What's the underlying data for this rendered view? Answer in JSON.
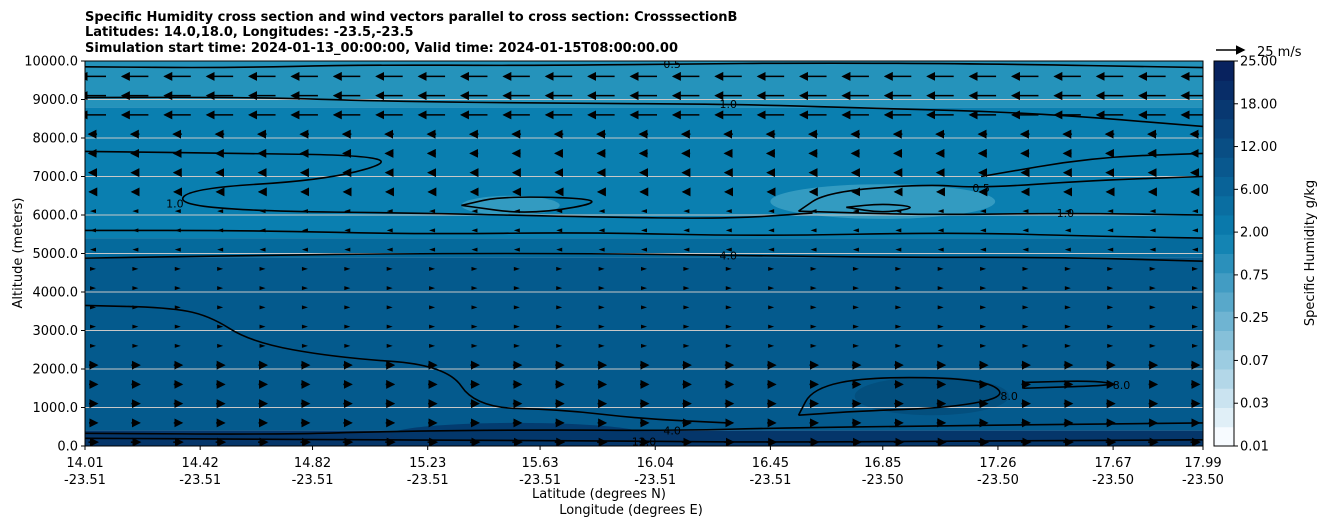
{
  "chart_data": {
    "type": "heatmap",
    "title": [
      "Specific Humidity cross section and wind vectors parallel to cross section: CrosssectionB",
      "Latitudes: 14.0,18.0, Longitudes: -23.5,-23.5",
      "Simulation start time: 2024-01-13_00:00:00, Valid time: 2024-01-15T08:00:00.00"
    ],
    "xlabel": "Latitude (degrees N)",
    "xlabel2": "Longitude (degrees E)",
    "ylabel": "Altitude (meters)",
    "xlim": [
      14.01,
      17.99
    ],
    "ylim": [
      0,
      10000
    ],
    "grid": "horizontal",
    "x_ticks": [
      {
        "lat": "14.01",
        "lon": "-23.51",
        "value": 14.01
      },
      {
        "lat": "14.42",
        "lon": "-23.51",
        "value": 14.42
      },
      {
        "lat": "14.82",
        "lon": "-23.51",
        "value": 14.82
      },
      {
        "lat": "15.23",
        "lon": "-23.51",
        "value": 15.23
      },
      {
        "lat": "15.63",
        "lon": "-23.51",
        "value": 15.63
      },
      {
        "lat": "16.04",
        "lon": "-23.51",
        "value": 16.04
      },
      {
        "lat": "16.45",
        "lon": "-23.51",
        "value": 16.45
      },
      {
        "lat": "16.85",
        "lon": "-23.50",
        "value": 16.85
      },
      {
        "lat": "17.26",
        "lon": "-23.50",
        "value": 17.26
      },
      {
        "lat": "17.67",
        "lon": "-23.50",
        "value": 17.67
      },
      {
        "lat": "17.99",
        "lon": "-23.50",
        "value": 17.99
      }
    ],
    "y_ticks": [
      "0.0",
      "1000.0",
      "2000.0",
      "3000.0",
      "4000.0",
      "5000.0",
      "6000.0",
      "7000.0",
      "8000.0",
      "9000.0",
      "10000.0"
    ],
    "colorbar": {
      "label": "Specific Humidity g/kg",
      "ticks": [
        "0.01",
        "0.03",
        "0.07",
        "0.25",
        "0.75",
        "2.00",
        "6.00",
        "12.00",
        "18.00",
        "25.00"
      ],
      "levels": 20,
      "color_low": "#f7fbff",
      "color_mid": "#0a7fb0",
      "color_high": "#08225e"
    },
    "quiver_key": {
      "label": "25 m/s",
      "speed": 25
    },
    "bands": [
      {
        "y0": 0,
        "y1": 400,
        "color": "#05366a"
      },
      {
        "y0": 400,
        "y1": 4900,
        "color": "#045a8d"
      },
      {
        "y0": 4900,
        "y1": 5400,
        "color": "#056a9c"
      },
      {
        "y0": 5400,
        "y1": 8800,
        "color": "#0a7fb0"
      },
      {
        "y0": 8800,
        "y1": 10000,
        "color": "#2593bb"
      }
    ],
    "patches": [
      {
        "lat": [
          16.45,
          17.25
        ],
        "alt": [
          5900,
          6800
        ],
        "color": "#3ba0c4"
      },
      {
        "lat": [
          15.35,
          15.7
        ],
        "alt": [
          6000,
          6500
        ],
        "color": "#3ba0c4"
      },
      {
        "lat": [
          16.75,
          17.3
        ],
        "alt": [
          800,
          1800
        ],
        "color": "#034e7b"
      },
      {
        "lat": [
          15.1,
          16.0
        ],
        "alt": [
          0,
          600
        ],
        "color": "#03376b"
      }
    ],
    "contours": [
      {
        "label": "0.5",
        "points": [
          [
            14.01,
            9850
          ],
          [
            14.5,
            9820
          ],
          [
            15.0,
            9900
          ],
          [
            15.6,
            9880
          ],
          [
            16.1,
            9920
          ],
          [
            16.6,
            9950
          ],
          [
            17.2,
            9930
          ],
          [
            17.99,
            9830
          ]
        ]
      },
      {
        "label": "1.0",
        "points": [
          [
            14.01,
            9050
          ],
          [
            14.6,
            9060
          ],
          [
            15.1,
            8950
          ],
          [
            15.7,
            8900
          ],
          [
            16.3,
            8880
          ],
          [
            16.8,
            8780
          ],
          [
            17.4,
            8650
          ],
          [
            17.99,
            8300
          ]
        ]
      },
      {
        "label": "1.0",
        "points": [
          [
            14.01,
            7650
          ],
          [
            14.6,
            7600
          ],
          [
            15.0,
            7550
          ],
          [
            15.1,
            7350
          ],
          [
            14.85,
            6900
          ],
          [
            14.4,
            6700
          ],
          [
            14.33,
            6300
          ],
          [
            14.6,
            6100
          ],
          [
            15.2,
            6050
          ],
          [
            15.8,
            5950
          ],
          [
            16.3,
            5900
          ],
          [
            16.6,
            6050
          ]
        ]
      },
      {
        "label": "0.5",
        "points": [
          [
            16.55,
            6100
          ],
          [
            16.65,
            6600
          ],
          [
            17.0,
            6800
          ],
          [
            17.2,
            6700
          ],
          [
            17.6,
            6900
          ],
          [
            17.99,
            7000
          ]
        ]
      },
      {
        "label": "1.0",
        "points": [
          [
            16.55,
            6100
          ],
          [
            17.0,
            6000
          ],
          [
            17.5,
            6050
          ],
          [
            17.99,
            6000
          ]
        ]
      },
      {
        "label": "",
        "points": [
          [
            17.2,
            7000
          ],
          [
            17.6,
            7500
          ],
          [
            17.99,
            7600
          ]
        ]
      },
      {
        "label": "",
        "points": [
          [
            15.35,
            6250
          ],
          [
            15.5,
            6500
          ],
          [
            15.9,
            6400
          ],
          [
            15.6,
            6000
          ],
          [
            15.35,
            6250
          ]
        ]
      },
      {
        "label": "",
        "points": [
          [
            16.72,
            6200
          ],
          [
            16.85,
            6300
          ],
          [
            16.98,
            6200
          ],
          [
            16.85,
            6050
          ],
          [
            16.72,
            6200
          ]
        ]
      },
      {
        "label": "",
        "points": [
          [
            14.01,
            5600
          ],
          [
            14.6,
            5600
          ],
          [
            15.2,
            5500
          ],
          [
            15.8,
            5550
          ],
          [
            16.4,
            5450
          ],
          [
            17.1,
            5550
          ],
          [
            17.6,
            5450
          ],
          [
            17.99,
            5400
          ]
        ]
      },
      {
        "label": "4.0",
        "points": [
          [
            14.01,
            4880
          ],
          [
            14.6,
            4950
          ],
          [
            15.2,
            5000
          ],
          [
            15.8,
            5000
          ],
          [
            16.3,
            4950
          ],
          [
            16.9,
            4900
          ],
          [
            17.5,
            4900
          ],
          [
            17.99,
            4800
          ]
        ]
      },
      {
        "label": "",
        "points": [
          [
            14.01,
            3650
          ],
          [
            14.3,
            3600
          ],
          [
            14.45,
            3400
          ],
          [
            14.6,
            2700
          ],
          [
            14.9,
            2300
          ],
          [
            15.3,
            2100
          ],
          [
            15.4,
            1000
          ],
          [
            15.7,
            950
          ],
          [
            16.0,
            700
          ],
          [
            16.3,
            600
          ]
        ]
      },
      {
        "label": "8.0",
        "points": [
          [
            16.55,
            800
          ],
          [
            16.6,
            1500
          ],
          [
            16.8,
            1800
          ],
          [
            17.2,
            1750
          ],
          [
            17.3,
            1300
          ],
          [
            17.1,
            1000
          ],
          [
            16.75,
            900
          ],
          [
            16.55,
            800
          ]
        ]
      },
      {
        "label": "8.0",
        "points": [
          [
            17.35,
            1650
          ],
          [
            17.6,
            1700
          ],
          [
            17.7,
            1580
          ],
          [
            17.35,
            1500
          ]
        ]
      },
      {
        "label": "4.0",
        "points": [
          [
            14.01,
            330
          ],
          [
            14.7,
            300
          ],
          [
            15.1,
            380
          ],
          [
            15.6,
            420
          ],
          [
            16.1,
            400
          ],
          [
            16.5,
            470
          ],
          [
            17.0,
            520
          ],
          [
            17.5,
            560
          ],
          [
            17.99,
            600
          ]
        ]
      },
      {
        "label": "12.0",
        "points": [
          [
            14.01,
            200
          ],
          [
            14.6,
            180
          ],
          [
            14.9,
            160
          ],
          [
            15.5,
            150
          ],
          [
            16.0,
            120
          ],
          [
            16.5,
            100
          ],
          [
            17.2,
            130
          ],
          [
            17.99,
            160
          ]
        ]
      }
    ]
  }
}
